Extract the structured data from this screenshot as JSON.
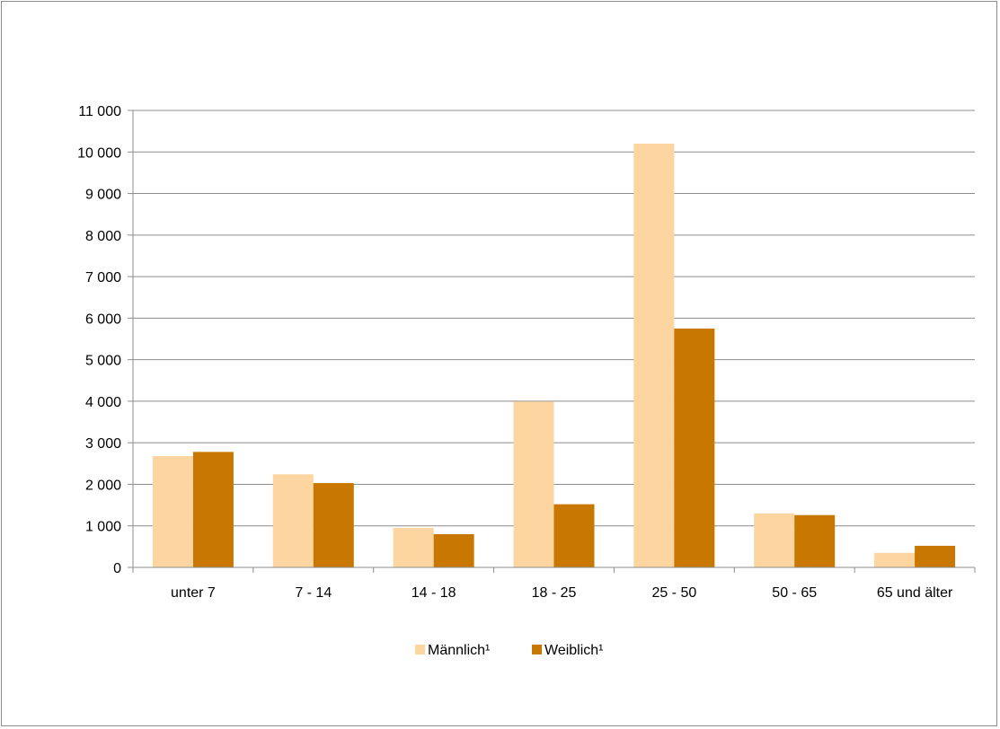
{
  "chart_data": {
    "type": "bar",
    "title": "",
    "xlabel": "",
    "ylabel": "",
    "categories": [
      "unter 7",
      "7 - 14",
      "14 - 18",
      "18 - 25",
      "25 - 50",
      "50 - 65",
      "65 und älter"
    ],
    "series": [
      {
        "name": "Männlich¹",
        "values": [
          2680,
          2240,
          950,
          3990,
          10200,
          1300,
          350
        ],
        "color": "#fcd5a0"
      },
      {
        "name": "Weiblich¹",
        "values": [
          2780,
          2030,
          800,
          1520,
          5750,
          1260,
          520
        ],
        "color": "#c87800"
      }
    ],
    "ylim": [
      0,
      11000
    ],
    "yticks": [
      {
        "value": 0,
        "label": "0"
      },
      {
        "value": 1000,
        "label": "1 000"
      },
      {
        "value": 2000,
        "label": "2 000"
      },
      {
        "value": 3000,
        "label": "3 000"
      },
      {
        "value": 4000,
        "label": "4 000"
      },
      {
        "value": 5000,
        "label": "5 000"
      },
      {
        "value": 6000,
        "label": "6 000"
      },
      {
        "value": 7000,
        "label": "7 000"
      },
      {
        "value": 8000,
        "label": "8 000"
      },
      {
        "value": 9000,
        "label": "9 000"
      },
      {
        "value": 10000,
        "label": "10 000"
      },
      {
        "value": 11000,
        "label": "11 000"
      }
    ],
    "grid": true,
    "legend_position": "bottom",
    "gridline_color": "#8c8c8c",
    "axis_color": "#8c8c8c"
  }
}
